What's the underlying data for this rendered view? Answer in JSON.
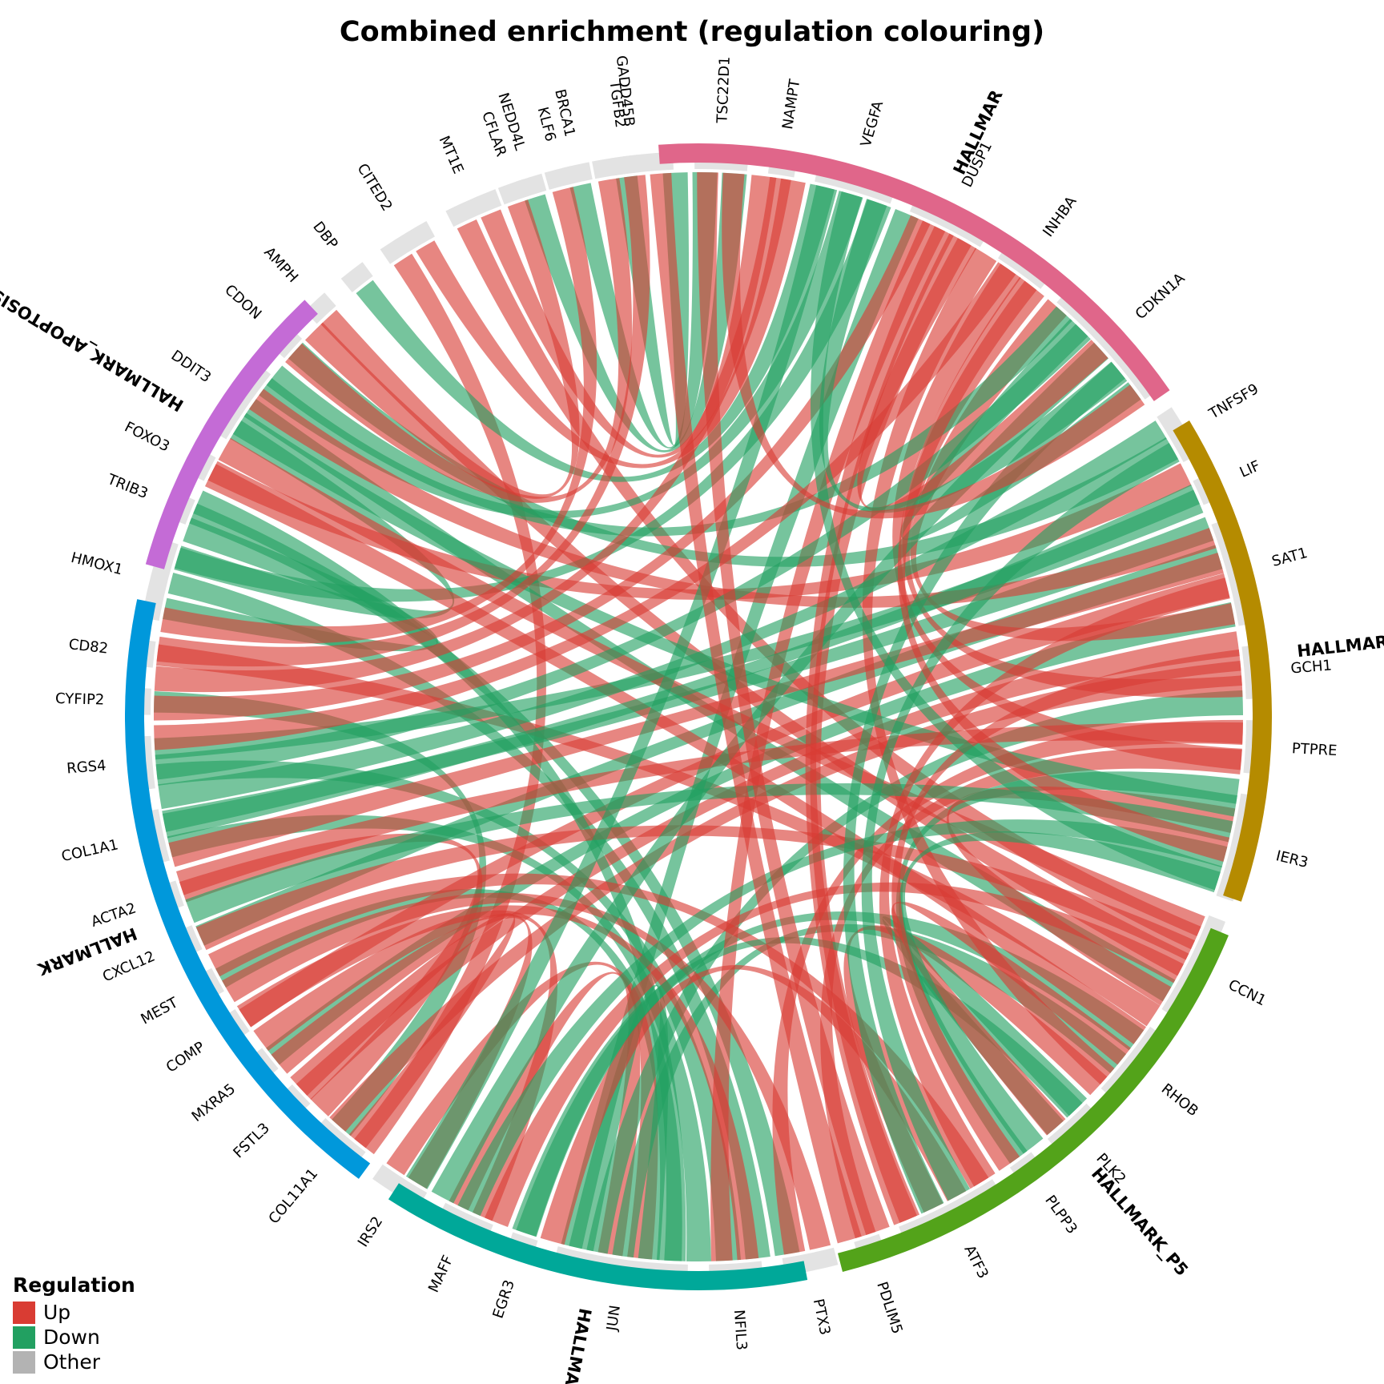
{
  "title": "Combined enrichment (regulation colouring)",
  "colors": {
    "up": "#d93c33",
    "down": "#22a061",
    "other": "#b3b3b3"
  },
  "legend": {
    "title": "Regulation",
    "items": [
      {
        "label": "Up",
        "key": "up"
      },
      {
        "label": "Down",
        "key": "down"
      },
      {
        "label": "Other",
        "key": "other"
      }
    ]
  },
  "gene_sets": [
    {
      "label": "HALLMAR",
      "color": "#e0668a"
    },
    {
      "label": "HALLMARK_EPITHELIAL_MESENCH",
      "color": "#b58b00"
    },
    {
      "label": "HALLMARK_P5",
      "color": "#53a31a"
    },
    {
      "label": "HALLMARK",
      "color": "#00a899"
    },
    {
      "label": "HALLMARK",
      "color": "#0098db"
    },
    {
      "label": "HALLMARK_APOPTOSIS",
      "color": "#c46bd6"
    }
  ],
  "genes": [
    {
      "name": "TGFB2",
      "reg": "down",
      "sets": [
        0
      ]
    },
    {
      "name": "BRCA1",
      "reg": "down",
      "sets": [
        0
      ]
    },
    {
      "name": "NEDD4L",
      "reg": "down",
      "sets": [
        0
      ]
    },
    {
      "name": "MT1E",
      "reg": "up",
      "sets": [
        0,
        2
      ]
    },
    {
      "name": "CITED2",
      "reg": "up",
      "sets": [
        0,
        4
      ]
    },
    {
      "name": "DBP",
      "reg": "down",
      "sets": [
        0
      ]
    },
    {
      "name": "AMPH",
      "reg": "up",
      "sets": [
        2
      ]
    },
    {
      "name": "CDON",
      "reg": "down",
      "sets": [
        1
      ]
    },
    {
      "name": "DDIT3",
      "reg": "down",
      "sets": [
        0,
        2,
        5
      ]
    },
    {
      "name": "FOXO3",
      "reg": "up",
      "sets": [
        1
      ]
    },
    {
      "name": "TRIB3",
      "reg": "down",
      "sets": [
        3
      ]
    },
    {
      "name": "HMOX1",
      "reg": "down",
      "sets": [
        0,
        3,
        5
      ]
    },
    {
      "name": "CD82",
      "reg": "up",
      "sets": [
        2
      ]
    },
    {
      "name": "CYFIP2",
      "reg": "down",
      "sets": [
        4
      ]
    },
    {
      "name": "RGS4",
      "reg": "down",
      "sets": [
        1,
        3
      ]
    },
    {
      "name": "COL1A1",
      "reg": "down",
      "sets": [
        1,
        3
      ]
    },
    {
      "name": "ACTA2",
      "reg": "up",
      "sets": [
        4
      ]
    },
    {
      "name": "CXCL12",
      "reg": "down",
      "sets": [
        1
      ]
    },
    {
      "name": "MEST",
      "reg": "down",
      "sets": [
        3
      ]
    },
    {
      "name": "COMP",
      "reg": "up",
      "sets": [
        1
      ]
    },
    {
      "name": "MXRA5",
      "reg": "down",
      "sets": [
        1
      ]
    },
    {
      "name": "FSTL3",
      "reg": "up",
      "sets": [
        1
      ]
    },
    {
      "name": "COL11A1",
      "reg": "up",
      "sets": [
        1,
        4
      ]
    },
    {
      "name": "IRS2",
      "reg": "up",
      "sets": [
        3,
        4
      ]
    },
    {
      "name": "MAFF",
      "reg": "up",
      "sets": [
        3,
        4
      ]
    },
    {
      "name": "EGR3",
      "reg": "down",
      "sets": [
        2
      ]
    },
    {
      "name": "JUN",
      "reg": "down",
      "sets": [
        0,
        1,
        2,
        3,
        5
      ]
    },
    {
      "name": "NFIL3",
      "reg": "up",
      "sets": [
        0,
        4
      ]
    },
    {
      "name": "PTX3",
      "reg": "up",
      "sets": [
        1,
        4
      ]
    },
    {
      "name": "PDLIM5",
      "reg": "up",
      "sets": [
        1
      ]
    },
    {
      "name": "ATF3",
      "reg": "up",
      "sets": [
        0,
        2,
        3,
        4
      ]
    },
    {
      "name": "PLPP3",
      "reg": "down",
      "sets": [
        1
      ]
    },
    {
      "name": "PLK2",
      "reg": "down",
      "sets": [
        2,
        3
      ]
    },
    {
      "name": "RHOB",
      "reg": "up",
      "sets": [
        0,
        2,
        5
      ]
    },
    {
      "name": "CCN1",
      "reg": "up",
      "sets": [
        1,
        3,
        4,
        5
      ]
    },
    {
      "name": "IER3",
      "reg": "down",
      "sets": [
        2,
        3,
        4,
        5
      ]
    },
    {
      "name": "PTPRE",
      "reg": "up",
      "sets": [
        0,
        4
      ]
    },
    {
      "name": "GCH1",
      "reg": "up",
      "sets": [
        0,
        2
      ]
    },
    {
      "name": "SAT1",
      "reg": "up",
      "sets": [
        0,
        2,
        4,
        5
      ]
    },
    {
      "name": "LIF",
      "reg": "down",
      "sets": [
        4
      ]
    },
    {
      "name": "TNFSF9",
      "reg": "down",
      "sets": [
        2,
        4
      ]
    },
    {
      "name": "CDKN1A",
      "reg": "down",
      "sets": [
        0,
        2,
        3,
        4,
        5
      ]
    },
    {
      "name": "INHBA",
      "reg": "up",
      "sets": [
        1,
        4
      ]
    },
    {
      "name": "DUSP1",
      "reg": "up",
      "sets": [
        0,
        2,
        4
      ]
    },
    {
      "name": "VEGFA",
      "reg": "down",
      "sets": [
        0,
        1,
        3
      ]
    },
    {
      "name": "NAMPT",
      "reg": "up",
      "sets": [
        4
      ]
    },
    {
      "name": "TSC22D1",
      "reg": "up",
      "sets": [
        0,
        2
      ]
    },
    {
      "name": "GADD45B",
      "reg": "up",
      "sets": [
        2,
        4,
        5
      ]
    },
    {
      "name": "KLF6",
      "reg": "up",
      "sets": [
        4
      ]
    },
    {
      "name": "CFLAR",
      "reg": "up",
      "sets": [
        5
      ]
    }
  ]
}
